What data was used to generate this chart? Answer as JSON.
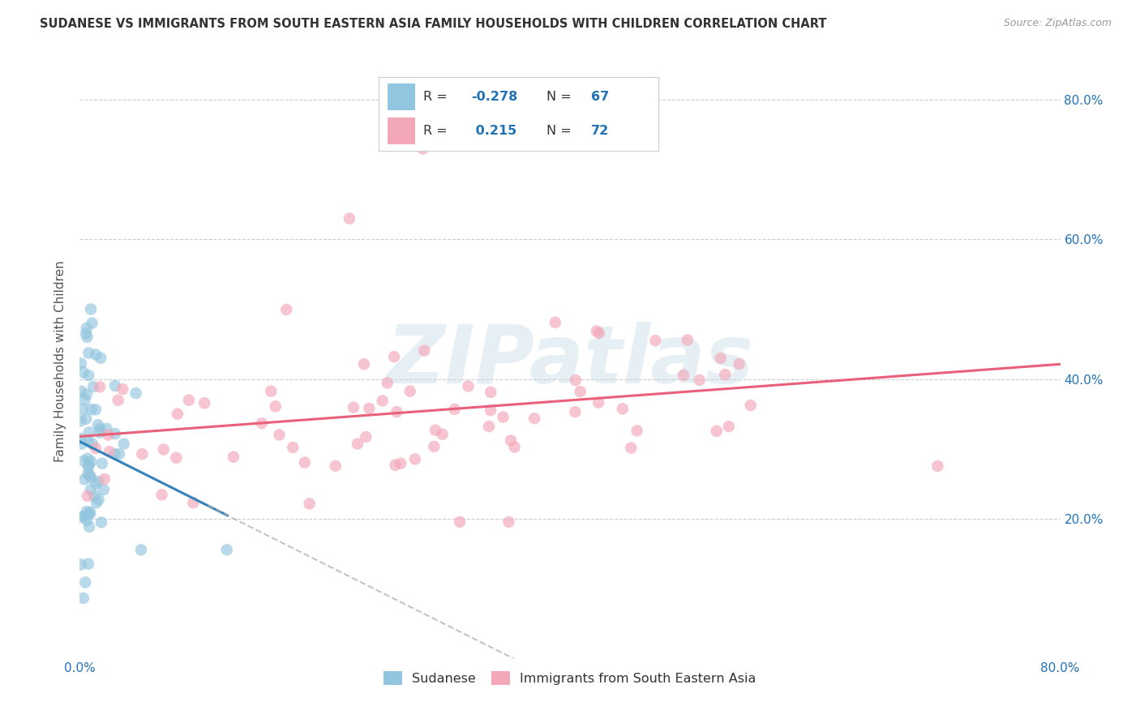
{
  "title": "SUDANESE VS IMMIGRANTS FROM SOUTH EASTERN ASIA FAMILY HOUSEHOLDS WITH CHILDREN CORRELATION CHART",
  "source": "Source: ZipAtlas.com",
  "ylabel": "Family Households with Children",
  "xlim": [
    0.0,
    0.8
  ],
  "ylim": [
    0.0,
    0.85
  ],
  "blue_R": -0.278,
  "blue_N": 67,
  "pink_R": 0.215,
  "pink_N": 72,
  "blue_color": "#92c5de",
  "pink_color": "#f4a7b9",
  "blue_line_color": "#3182bd",
  "pink_line_color": "#e8607a",
  "watermark": "ZIPatlas",
  "legend_label_blue": "Sudanese",
  "legend_label_pink": "Immigrants from South Eastern Asia",
  "blue_R_color": "#2171b5",
  "pink_R_color": "#2171b5",
  "axis_label_color": "#2171b5",
  "title_color": "#333333",
  "source_color": "#999999",
  "grid_color": "#c8c8c8",
  "ylabel_color": "#555555"
}
